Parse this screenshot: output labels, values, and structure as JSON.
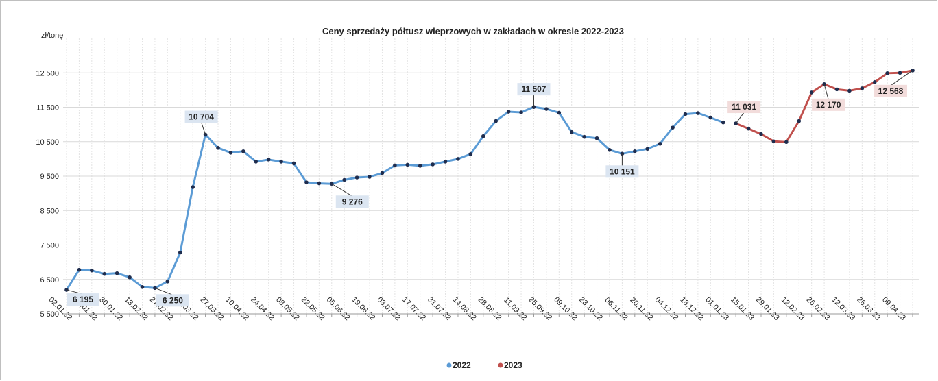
{
  "chart_data": {
    "type": "line",
    "title": "Ceny sprzedaży półtusz wieprzowych w zakładach w okresie 2022-2023",
    "y_label": "zł/tonę",
    "categories": [
      "02.01.22",
      null,
      "16.01.22",
      null,
      "30.01.22",
      null,
      "13.02.22",
      null,
      "27.02.22",
      null,
      "13.03.22",
      null,
      "27.03.22",
      null,
      "10.04.22",
      null,
      "24.04.22",
      null,
      "08.05.22",
      null,
      "22.05.22",
      null,
      "05.06.22",
      null,
      "19.06.22",
      null,
      "03.07.22",
      null,
      "17.07.22",
      null,
      "31.07.22",
      null,
      "14.08.22",
      null,
      "28.08.22",
      null,
      "11.09.22",
      null,
      "25.09.22",
      null,
      "09.10.22",
      null,
      "23.10.22",
      null,
      "06.11.22",
      null,
      "20.11.22",
      null,
      "04.12.22",
      null,
      "18.12.22",
      null,
      "01.01.23",
      null,
      "15.01.23",
      null,
      "29.01.23",
      null,
      "12.02.23",
      null,
      "26.02.23",
      null,
      "12.03.23",
      null,
      "26.03.23",
      null,
      "09.04.23",
      null
    ],
    "series": [
      {
        "name": "2022",
        "color": "#5b9bd5",
        "values": [
          6195,
          6780,
          6760,
          6660,
          6680,
          6560,
          6280,
          6250,
          6440,
          7280,
          9180,
          10704,
          10320,
          10180,
          10220,
          9920,
          9980,
          9920,
          9870,
          9320,
          9290,
          9276,
          9390,
          9460,
          9480,
          9590,
          9810,
          9830,
          9800,
          9840,
          9920,
          10000,
          10140,
          10660,
          11100,
          11370,
          11350,
          11507,
          11450,
          11340,
          10780,
          10640,
          10600,
          10260,
          10151,
          10220,
          10290,
          10440,
          10910,
          11300,
          11330,
          11200,
          11060,
          null,
          null,
          null,
          null,
          null,
          null,
          null,
          null,
          null,
          null,
          null,
          null,
          null,
          null,
          null
        ],
        "value_labels": [
          "6 195",
          null,
          null,
          null,
          null,
          null,
          null,
          "6 250",
          null,
          null,
          null,
          "10 704",
          null,
          null,
          null,
          null,
          null,
          null,
          null,
          null,
          null,
          "9 276",
          null,
          null,
          null,
          null,
          null,
          null,
          null,
          null,
          null,
          null,
          null,
          null,
          null,
          null,
          null,
          "11 507",
          null,
          null,
          null,
          null,
          null,
          null,
          "10 151",
          null,
          null,
          null,
          null,
          null,
          null,
          null,
          null,
          null,
          null,
          null,
          null,
          null,
          null,
          null,
          null,
          null,
          null,
          null,
          null,
          null,
          null,
          null
        ]
      },
      {
        "name": "2023",
        "color": "#c0504d",
        "values": [
          null,
          null,
          null,
          null,
          null,
          null,
          null,
          null,
          null,
          null,
          null,
          null,
          null,
          null,
          null,
          null,
          null,
          null,
          null,
          null,
          null,
          null,
          null,
          null,
          null,
          null,
          null,
          null,
          null,
          null,
          null,
          null,
          null,
          null,
          null,
          null,
          null,
          null,
          null,
          null,
          null,
          null,
          null,
          null,
          null,
          null,
          null,
          null,
          null,
          null,
          null,
          null,
          null,
          11031,
          10880,
          10720,
          10510,
          10490,
          11100,
          11930,
          12170,
          12020,
          11980,
          12050,
          12230,
          12490,
          12500,
          12568
        ],
        "value_labels": [
          null,
          null,
          null,
          null,
          null,
          null,
          null,
          null,
          null,
          null,
          null,
          null,
          null,
          null,
          null,
          null,
          null,
          null,
          null,
          null,
          null,
          null,
          null,
          null,
          null,
          null,
          null,
          null,
          null,
          null,
          null,
          null,
          null,
          null,
          null,
          null,
          null,
          null,
          null,
          null,
          null,
          null,
          null,
          null,
          null,
          null,
          null,
          null,
          null,
          null,
          null,
          null,
          null,
          "11 031",
          null,
          null,
          null,
          null,
          null,
          null,
          "12 170",
          null,
          null,
          null,
          null,
          null,
          null,
          "12 568"
        ]
      }
    ],
    "ylim": [
      5500,
      13500
    ],
    "yticks": [
      {
        "value": 5500,
        "label": "5 500"
      },
      {
        "value": 6500,
        "label": "6 500"
      },
      {
        "value": 7500,
        "label": "7 500"
      },
      {
        "value": 8500,
        "label": "8 500"
      },
      {
        "value": 9500,
        "label": "9 500"
      },
      {
        "value": 10500,
        "label": "10 500"
      },
      {
        "value": 11500,
        "label": "11 500"
      },
      {
        "value": 12500,
        "label": "12 500"
      }
    ],
    "grid": true,
    "legend": "bottom",
    "marker_color": "#1f2d4e"
  }
}
